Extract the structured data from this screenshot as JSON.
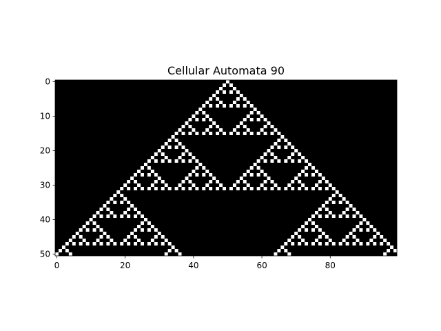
{
  "chart_data": {
    "type": "heatmap",
    "title": "Cellular Automata 90",
    "rule": 90,
    "xlabel": "",
    "ylabel": "",
    "grid": false,
    "colormap": "gray",
    "colors": {
      "on": "#ffffff",
      "off": "#000000"
    },
    "width": 100,
    "generations": 51,
    "initial_active_column": 50,
    "xlim": [
      0,
      99
    ],
    "ylim": [
      50,
      0
    ],
    "x_ticks": [
      0,
      20,
      40,
      60,
      80
    ],
    "y_ticks": [
      0,
      10,
      20,
      30,
      40,
      50
    ]
  }
}
